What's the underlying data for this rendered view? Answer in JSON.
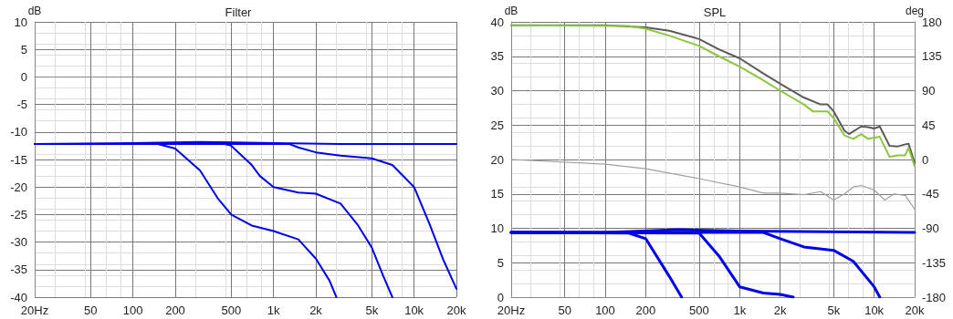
{
  "chart_data": [
    {
      "type": "line",
      "title": "Filter",
      "ylabel": "dB",
      "log": "x",
      "grid": true,
      "line_style": "solid",
      "marker": "none",
      "xlim": [
        20,
        20000
      ],
      "xticks": [
        {
          "value": 20,
          "label": "20Hz"
        },
        50,
        100,
        200,
        500,
        {
          "value": 1000,
          "label": "1k"
        },
        {
          "value": 2000,
          "label": "2k"
        },
        {
          "value": 5000,
          "label": "5k"
        },
        {
          "value": 10000,
          "label": "10k"
        },
        {
          "value": 20000,
          "label": "20k"
        }
      ],
      "ylim": [
        -40,
        10
      ],
      "yticks": [
        -40,
        -35,
        -30,
        -25,
        -20,
        -15,
        -10,
        -5,
        0,
        5,
        10
      ],
      "series": [
        {
          "color": "#0000e6",
          "x": [
            20,
            100,
            300,
            1000,
            3000,
            20000
          ],
          "values": [
            -12.2,
            -12,
            -11.8,
            -12,
            -12.2,
            -12.2
          ]
        },
        {
          "color": "#0000e6",
          "x": [
            20,
            150,
            200,
            300,
            400,
            500,
            700,
            1000,
            1500,
            2000,
            2500,
            2800
          ],
          "values": [
            -12.2,
            -12.2,
            -13,
            -17,
            -22,
            -25,
            -27,
            -28,
            -29.5,
            -33,
            -37,
            -40
          ]
        },
        {
          "color": "#0000e6",
          "x": [
            20,
            450,
            500,
            700,
            800,
            1000,
            1500,
            2000,
            3000,
            4000,
            5000,
            6000,
            7000
          ],
          "values": [
            -12.2,
            -12.2,
            -12.5,
            -16,
            -18,
            -20,
            -21,
            -21.2,
            -23,
            -27,
            -31,
            -36,
            -40
          ]
        },
        {
          "color": "#0000e6",
          "x": [
            20,
            1300,
            1500,
            2000,
            3000,
            5000,
            7000,
            10000,
            13000,
            16000,
            20000
          ],
          "values": [
            -12.2,
            -12.2,
            -12.8,
            -13.7,
            -14.3,
            -14.8,
            -16,
            -20,
            -27,
            -33,
            -38.5
          ]
        }
      ]
    },
    {
      "type": "line",
      "title": "SPL",
      "ylabel": "dB",
      "y2label": "deg",
      "log": "x",
      "grid": true,
      "line_style": "solid",
      "marker": "none",
      "xlim": [
        20,
        20000
      ],
      "xticks": [
        {
          "value": 20,
          "label": "20Hz"
        },
        50,
        100,
        200,
        500,
        {
          "value": 1000,
          "label": "1k"
        },
        {
          "value": 2000,
          "label": "2k"
        },
        {
          "value": 5000,
          "label": "5k"
        },
        {
          "value": 10000,
          "label": "10k"
        },
        {
          "value": 20000,
          "label": "20k"
        }
      ],
      "ylim": [
        0,
        40
      ],
      "yticks": [
        0,
        5,
        10,
        15,
        20,
        25,
        30,
        35,
        40
      ],
      "y2lim": [
        -180,
        180
      ],
      "y2ticks": [
        -180,
        -135,
        -90,
        -45,
        0,
        45,
        90,
        135,
        180
      ],
      "series": [
        {
          "color": "#5a5a5a",
          "x": [
            20,
            100,
            200,
            300,
            500,
            700,
            1000,
            1500,
            2000,
            3000,
            4000,
            4500,
            5000,
            6000,
            6500,
            8000,
            9000,
            10000,
            11000,
            13000,
            15000,
            17000,
            18000,
            20000
          ],
          "values": [
            39.5,
            39.5,
            39.2,
            38.7,
            37.5,
            36,
            34.7,
            32.5,
            31,
            29,
            28,
            28,
            27,
            24.2,
            23.7,
            24.8,
            24.7,
            24.5,
            24.8,
            22,
            21.9,
            22.2,
            22.3,
            19.5
          ]
        },
        {
          "color": "#8cc63f",
          "x": [
            20,
            150,
            200,
            300,
            500,
            700,
            1000,
            1500,
            2000,
            3000,
            3500,
            4500,
            5000,
            6000,
            7000,
            8000,
            9000,
            11000,
            13000,
            15000,
            17000,
            18000,
            20000
          ],
          "values": [
            39.5,
            39.4,
            39,
            38,
            36.5,
            35,
            33.5,
            31.5,
            30,
            28,
            27,
            27,
            26,
            23.5,
            23,
            23.7,
            23,
            23.3,
            20.4,
            20.6,
            20.6,
            21.7,
            19
          ]
        },
        {
          "color": "#a0a0a0",
          "axis": "y2",
          "x": [
            20,
            100,
            200,
            500,
            1000,
            1500,
            2000,
            3000,
            4000,
            5000,
            6000,
            7000,
            8000,
            10000,
            12000,
            14000,
            17000,
            20000
          ],
          "values": [
            0,
            -6,
            -12,
            -25,
            -36,
            -44,
            -44,
            -46,
            -42,
            -53,
            -45,
            -36,
            -34,
            -40,
            -53,
            -45,
            -47,
            -65
          ]
        },
        {
          "color": "#0000e6",
          "x": [
            20,
            100,
            350,
            1000,
            20000
          ],
          "values": [
            9.4,
            9.4,
            9.8,
            9.6,
            9.4
          ]
        },
        {
          "color": "#0000e6",
          "x": [
            20,
            150,
            200,
            300,
            370
          ],
          "values": [
            9.4,
            9.3,
            8.5,
            3,
            0
          ]
        },
        {
          "color": "#0000e6",
          "x": [
            20,
            500,
            700,
            1000,
            1500,
            2000,
            2500
          ],
          "values": [
            9.4,
            9.3,
            6,
            1.5,
            0.6,
            0.4,
            0
          ]
        },
        {
          "color": "#0000e6",
          "x": [
            20,
            1500,
            2000,
            3000,
            5000,
            7000,
            10000,
            11000
          ],
          "values": [
            9.4,
            9.4,
            8.5,
            7.3,
            6.8,
            5.2,
            1.5,
            0
          ]
        }
      ]
    }
  ]
}
